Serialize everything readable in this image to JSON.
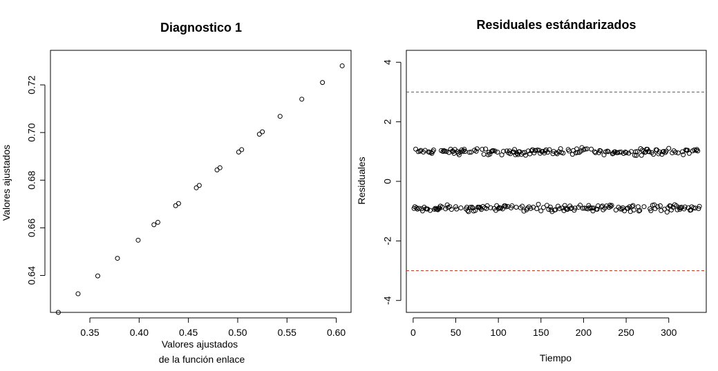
{
  "chart_data": [
    {
      "type": "scatter",
      "title": "Diagnostico 1",
      "xlabel": [
        "Valores ajustados",
        "de la función enlace"
      ],
      "ylabel": "Valores ajustados",
      "xlim": [
        0.31,
        0.615
      ],
      "ylim": [
        0.6245,
        0.7345
      ],
      "xticks": [
        0.35,
        0.4,
        0.45,
        0.5,
        0.55,
        0.6
      ],
      "xtick_labels": [
        "0.35",
        "0.40",
        "0.45",
        "0.50",
        "0.55",
        "0.60"
      ],
      "yticks": [
        0.64,
        0.66,
        0.68,
        0.7,
        0.72
      ],
      "ytick_labels": [
        "0.64",
        "0.66",
        "0.68",
        "0.70",
        "0.72"
      ],
      "points": [
        [
          0.318,
          0.6245
        ],
        [
          0.338,
          0.6323
        ],
        [
          0.358,
          0.6398
        ],
        [
          0.378,
          0.6472
        ],
        [
          0.399,
          0.6548
        ],
        [
          0.415,
          0.6613
        ],
        [
          0.419,
          0.6623
        ],
        [
          0.437,
          0.6693
        ],
        [
          0.44,
          0.6702
        ],
        [
          0.458,
          0.6768
        ],
        [
          0.461,
          0.6778
        ],
        [
          0.479,
          0.6843
        ],
        [
          0.482,
          0.6852
        ],
        [
          0.501,
          0.6918
        ],
        [
          0.504,
          0.6928
        ],
        [
          0.522,
          0.6993
        ],
        [
          0.525,
          0.7003
        ],
        [
          0.543,
          0.7068
        ],
        [
          0.565,
          0.714
        ],
        [
          0.586,
          0.721
        ],
        [
          0.606,
          0.728
        ]
      ]
    },
    {
      "type": "scatter",
      "title": "Residuales estándarizados",
      "xlabel": "Tiempo",
      "ylabel": "Residuales",
      "xlim": [
        -8,
        344
      ],
      "ylim": [
        -4.4,
        4.4
      ],
      "xticks": [
        0,
        50,
        100,
        150,
        200,
        250,
        300
      ],
      "xtick_labels": [
        "0",
        "50",
        "100",
        "150",
        "200",
        "250",
        "300"
      ],
      "yticks": [
        -4,
        -2,
        0,
        2,
        4
      ],
      "ytick_labels": [
        "-4",
        "-2",
        "0",
        "2",
        "4"
      ],
      "reference_lines": [
        3,
        -3
      ],
      "reference_line_color": "#c0392b",
      "n_points": 336,
      "upper_band": {
        "center": 1.0,
        "spread": 0.14
      },
      "lower_band": {
        "center": -0.9,
        "spread": 0.14
      }
    }
  ]
}
